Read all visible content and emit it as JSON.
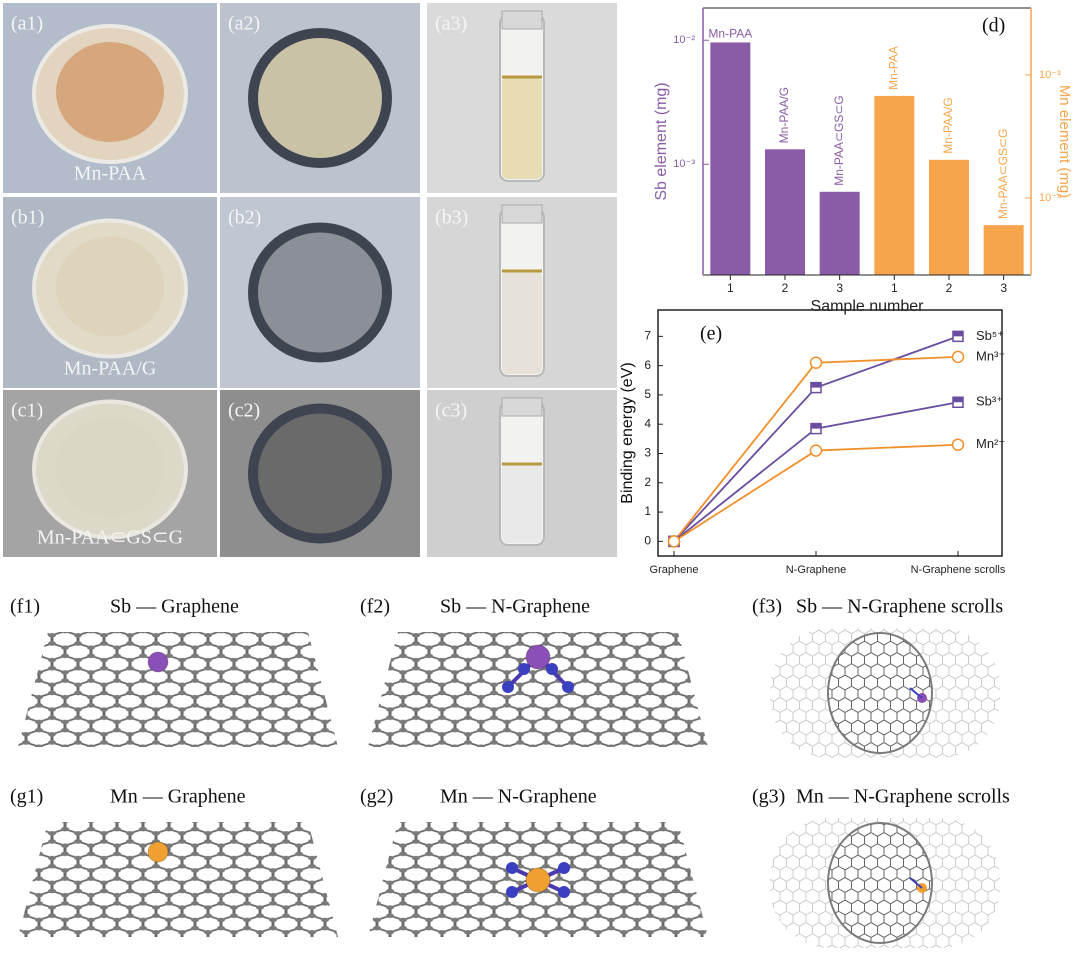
{
  "photos": [
    {
      "label": "(a1)",
      "caption": "Mn-PAA"
    },
    {
      "label": "(a2)"
    },
    {
      "label": "(a3)"
    },
    {
      "label": "(b1)",
      "caption": "Mn-PAA/G"
    },
    {
      "label": "(b2)"
    },
    {
      "label": "(b3)"
    },
    {
      "label": "(c1)",
      "caption": "Mn-PAA⊂GS⊂G"
    },
    {
      "label": "(c2)"
    },
    {
      "label": "(c3)"
    }
  ],
  "structures": [
    {
      "label": "(f1)",
      "title": "Sb — Graphene"
    },
    {
      "label": "(f2)",
      "title": "Sb — N-Graphene"
    },
    {
      "label": "(f3)",
      "title": "Sb — N-Graphene scrolls"
    },
    {
      "label": "(g1)",
      "title": "Mn — Graphene"
    },
    {
      "label": "(g2)",
      "title": "Mn — N-Graphene"
    },
    {
      "label": "(g3)",
      "title": "Mn — N-Graphene scrolls"
    }
  ],
  "chart_data": [
    {
      "type": "bar",
      "label": "(d)",
      "x_label": "Sample number",
      "y_label": "Sb element (mg)",
      "y2_label": "Mn element (mg)",
      "categories": [
        "1",
        "2",
        "3"
      ],
      "series": [
        {
          "color": "#8a5ca8",
          "values": [
            0.0096,
            0.00132,
            0.0006
          ],
          "bar_labels": [
            "Mn-PAA",
            "Mn-PAA/G",
            "Mn-PAA⊂GS⊂G"
          ]
        },
        {
          "color": "#f6a54c",
          "axis": "y2",
          "values": [
            0.000675,
            0.000204,
            6e-05
          ],
          "bar_labels": [
            "Mn-PAA",
            "Mn-PAA/G",
            "Mn-PAA⊂GS⊂G"
          ]
        }
      ],
      "y_log": true,
      "y2_log": true,
      "ylim": [
        0.000128,
        0.0182
      ],
      "yticks": [
        {
          "value": 0.001,
          "label": "10⁻³"
        },
        {
          "value": 0.01,
          "label": "10⁻²"
        }
      ],
      "y2lim": [
        2.36e-05,
        0.0035
      ],
      "y2ticks": [
        {
          "value": 0.0001,
          "label": "10⁻⁴"
        },
        {
          "value": 0.001,
          "label": "10⁻³"
        }
      ]
    },
    {
      "type": "line",
      "label": "(e)",
      "y_label": "Binding energy (eV)",
      "categories": [
        "Graphene",
        "N-Graphene",
        "N-Graphene scrolls"
      ],
      "series": [
        {
          "name": "Sb⁵⁺",
          "color": "#6a4ca0",
          "marker": "square",
          "values": [
            0,
            5.25,
            7.0
          ]
        },
        {
          "name": "Mn³⁺",
          "color": "#f0902c",
          "marker": "circle",
          "values": [
            0,
            6.1,
            6.3
          ]
        },
        {
          "name": "Sb³⁺",
          "color": "#6a4ca0",
          "marker": "square",
          "values": [
            0,
            3.85,
            4.75
          ]
        },
        {
          "name": "Mn²⁺",
          "color": "#f0902c",
          "marker": "circle",
          "values": [
            0,
            3.1,
            3.3
          ]
        }
      ],
      "ylim": [
        -0.5,
        7.9
      ],
      "yticks": [
        0,
        1,
        2,
        3,
        4,
        5,
        6,
        7
      ]
    }
  ]
}
